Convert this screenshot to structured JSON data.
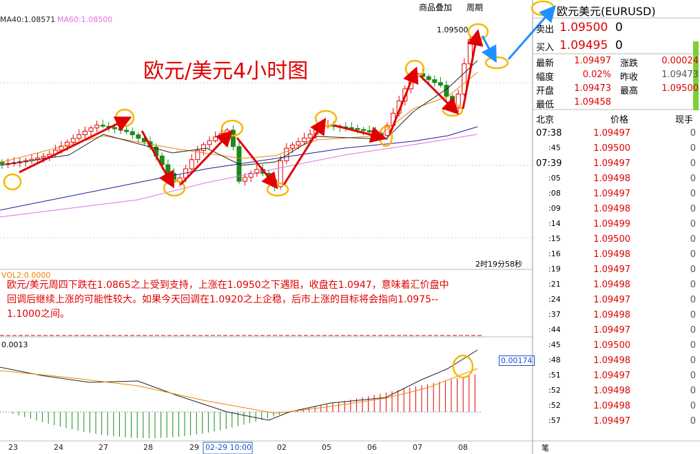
{
  "toolbar": {
    "overlay": "商品叠加",
    "period": "周期"
  },
  "chart": {
    "ma_legend": [
      "MA40:1.08571",
      "MA60:1.08500"
    ],
    "title": "欧元/美元4小时图",
    "high_label": "1.09500",
    "countdown": "2时19分58秒",
    "vol_label": "VOL2:0.0000",
    "commentary": [
      "欧元/美元周四下跌在1.0865之上受到支持，上涨在1.0950之下遇阻，收盘在1.0947，意味着汇价盘中",
      "回调后继续上涨的可能性较大。如果今天回调在1.0920之上企稳，后市上涨的目标将会指向1.0975--",
      "1.1000之间。"
    ],
    "macd_label": "0.0013",
    "macd_value": "0.00174",
    "x_labels": [
      "23",
      "24",
      "27",
      "28",
      "29",
      "02-29 10:00",
      "02",
      "05",
      "06",
      "07",
      "08"
    ]
  },
  "quote": {
    "title": "欧元美元(EURUSD)",
    "sell": [
      "卖出",
      "1.09500",
      "0"
    ],
    "buy": [
      "买入",
      "1.09495",
      "0"
    ],
    "stats": [
      [
        "最新",
        "1.09497",
        "涨跌",
        "0.00024"
      ],
      [
        "幅度",
        "0.02%",
        "昨收",
        "1.09473"
      ],
      [
        "开盘",
        "1.09473",
        "最高",
        "1.09500"
      ],
      [
        "最低",
        "1.09458"
      ]
    ],
    "tab": "笔"
  },
  "ticks": {
    "header": [
      "北京",
      "价格",
      "现手"
    ],
    "rows": [
      [
        "07:38",
        "1.09497",
        "0"
      ],
      [
        ":45",
        "1.09500",
        "0"
      ],
      [
        "07:39",
        "1.09497",
        "0"
      ],
      [
        ":05",
        "1.09498",
        "0"
      ],
      [
        ":08",
        "1.09497",
        "0"
      ],
      [
        ":09",
        "1.09498",
        "0"
      ],
      [
        ":14",
        "1.09499",
        "0"
      ],
      [
        ":15",
        "1.09500",
        "0"
      ],
      [
        ":16",
        "1.09498",
        "0"
      ],
      [
        ":19",
        "1.09497",
        "0"
      ],
      [
        ":21",
        "1.09498",
        "0"
      ],
      [
        ":24",
        "1.09497",
        "0"
      ],
      [
        ":37",
        "1.09498",
        "0"
      ],
      [
        ":44",
        "1.09497",
        "0"
      ],
      [
        ":45",
        "1.09500",
        "0"
      ],
      [
        ":48",
        "1.09498",
        "0"
      ],
      [
        ":51",
        "1.09497",
        "0"
      ],
      [
        ":52",
        "1.09498",
        "0"
      ],
      [
        ":52",
        "1.09498",
        "0"
      ],
      [
        ":57",
        "1.09497",
        "0"
      ]
    ]
  }
}
